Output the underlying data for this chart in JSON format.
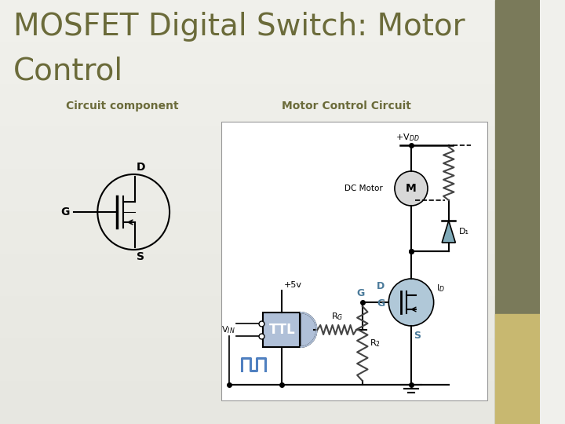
{
  "title_line1": "MOSFET Digital Switch: Motor",
  "title_line2": "Control",
  "subtitle_left": "Circuit component",
  "subtitle_right": "Motor Control Circuit",
  "bg_color_top": "#f0f0ec",
  "bg_color_bottom": "#d8d8d4",
  "title_color": "#6b6b3a",
  "subtitle_color": "#6b6b3a",
  "right_bar1_color": "#7a7a5a",
  "right_bar2_color": "#c8b870",
  "circuit_bg": "#ffffff",
  "mosfet_circle_color": "#b0c8d8",
  "ttl_box_color": "#b0c0d8",
  "diode_color": "#80aab8",
  "motor_circle_color": "#d8d8d8",
  "wire_color": "#000000",
  "label_color": "#4a7a9a",
  "pulse_color": "#5080c0"
}
